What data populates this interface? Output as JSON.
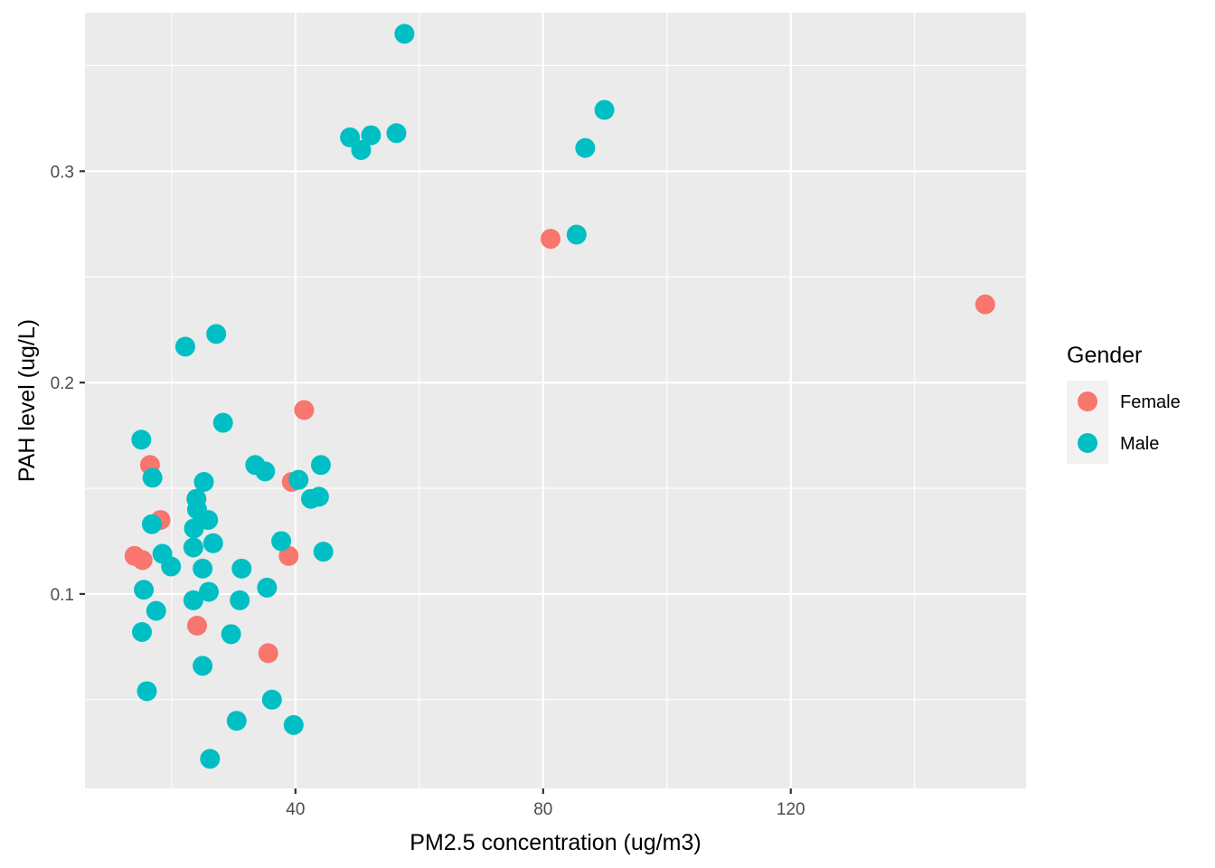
{
  "chart_data": {
    "type": "scatter",
    "title": "",
    "xlabel": "PM2.5 concentration (ug/m3)",
    "ylabel": "PAH level (ug/L)",
    "xlim": [
      6,
      158
    ],
    "ylim": [
      0.008,
      0.375
    ],
    "x_ticks": [
      40,
      80,
      120
    ],
    "x_tick_labels": [
      "40",
      "80",
      "120"
    ],
    "x_minor_ticks": [
      20,
      60,
      100,
      140
    ],
    "y_ticks": [
      0.1,
      0.2,
      0.3
    ],
    "y_tick_labels": [
      "0.1",
      "0.2",
      "0.3"
    ],
    "y_minor_ticks": [
      0.05,
      0.15,
      0.25,
      0.35
    ],
    "grid": true,
    "panel_background": "#ebebeb",
    "legend": {
      "title": "Gender",
      "position": "right"
    },
    "series": [
      {
        "name": "Female",
        "color": "#f8766d",
        "points": [
          {
            "x": 81.2,
            "y": 0.268
          },
          {
            "x": 151.4,
            "y": 0.237
          },
          {
            "x": 41.4,
            "y": 0.187
          },
          {
            "x": 16.5,
            "y": 0.161
          },
          {
            "x": 39.4,
            "y": 0.153
          },
          {
            "x": 18.2,
            "y": 0.135
          },
          {
            "x": 14.0,
            "y": 0.118
          },
          {
            "x": 15.3,
            "y": 0.116
          },
          {
            "x": 38.9,
            "y": 0.118
          },
          {
            "x": 24.1,
            "y": 0.085
          },
          {
            "x": 35.6,
            "y": 0.072
          }
        ]
      },
      {
        "name": "Male",
        "color": "#00bfc4",
        "points": [
          {
            "x": 57.6,
            "y": 0.365
          },
          {
            "x": 89.9,
            "y": 0.329
          },
          {
            "x": 48.8,
            "y": 0.316
          },
          {
            "x": 52.2,
            "y": 0.317
          },
          {
            "x": 56.3,
            "y": 0.318
          },
          {
            "x": 50.6,
            "y": 0.31
          },
          {
            "x": 86.8,
            "y": 0.311
          },
          {
            "x": 85.4,
            "y": 0.27
          },
          {
            "x": 27.2,
            "y": 0.223
          },
          {
            "x": 22.2,
            "y": 0.217
          },
          {
            "x": 28.3,
            "y": 0.181
          },
          {
            "x": 15.1,
            "y": 0.173
          },
          {
            "x": 16.9,
            "y": 0.155
          },
          {
            "x": 33.5,
            "y": 0.161
          },
          {
            "x": 35.1,
            "y": 0.158
          },
          {
            "x": 40.5,
            "y": 0.154
          },
          {
            "x": 44.1,
            "y": 0.161
          },
          {
            "x": 25.2,
            "y": 0.153
          },
          {
            "x": 24.0,
            "y": 0.145
          },
          {
            "x": 42.5,
            "y": 0.145
          },
          {
            "x": 43.8,
            "y": 0.146
          },
          {
            "x": 24.1,
            "y": 0.14
          },
          {
            "x": 25.9,
            "y": 0.135
          },
          {
            "x": 16.8,
            "y": 0.133
          },
          {
            "x": 23.6,
            "y": 0.131
          },
          {
            "x": 26.7,
            "y": 0.124
          },
          {
            "x": 37.7,
            "y": 0.125
          },
          {
            "x": 23.5,
            "y": 0.122
          },
          {
            "x": 18.5,
            "y": 0.119
          },
          {
            "x": 44.5,
            "y": 0.12
          },
          {
            "x": 19.9,
            "y": 0.113
          },
          {
            "x": 25.0,
            "y": 0.112
          },
          {
            "x": 31.3,
            "y": 0.112
          },
          {
            "x": 15.5,
            "y": 0.102
          },
          {
            "x": 35.4,
            "y": 0.103
          },
          {
            "x": 26.0,
            "y": 0.101
          },
          {
            "x": 23.5,
            "y": 0.097
          },
          {
            "x": 31.0,
            "y": 0.097
          },
          {
            "x": 17.5,
            "y": 0.092
          },
          {
            "x": 15.2,
            "y": 0.082
          },
          {
            "x": 29.6,
            "y": 0.081
          },
          {
            "x": 25.0,
            "y": 0.066
          },
          {
            "x": 16.0,
            "y": 0.054
          },
          {
            "x": 36.2,
            "y": 0.05
          },
          {
            "x": 30.5,
            "y": 0.04
          },
          {
            "x": 39.7,
            "y": 0.038
          },
          {
            "x": 26.2,
            "y": 0.022
          }
        ]
      }
    ]
  }
}
